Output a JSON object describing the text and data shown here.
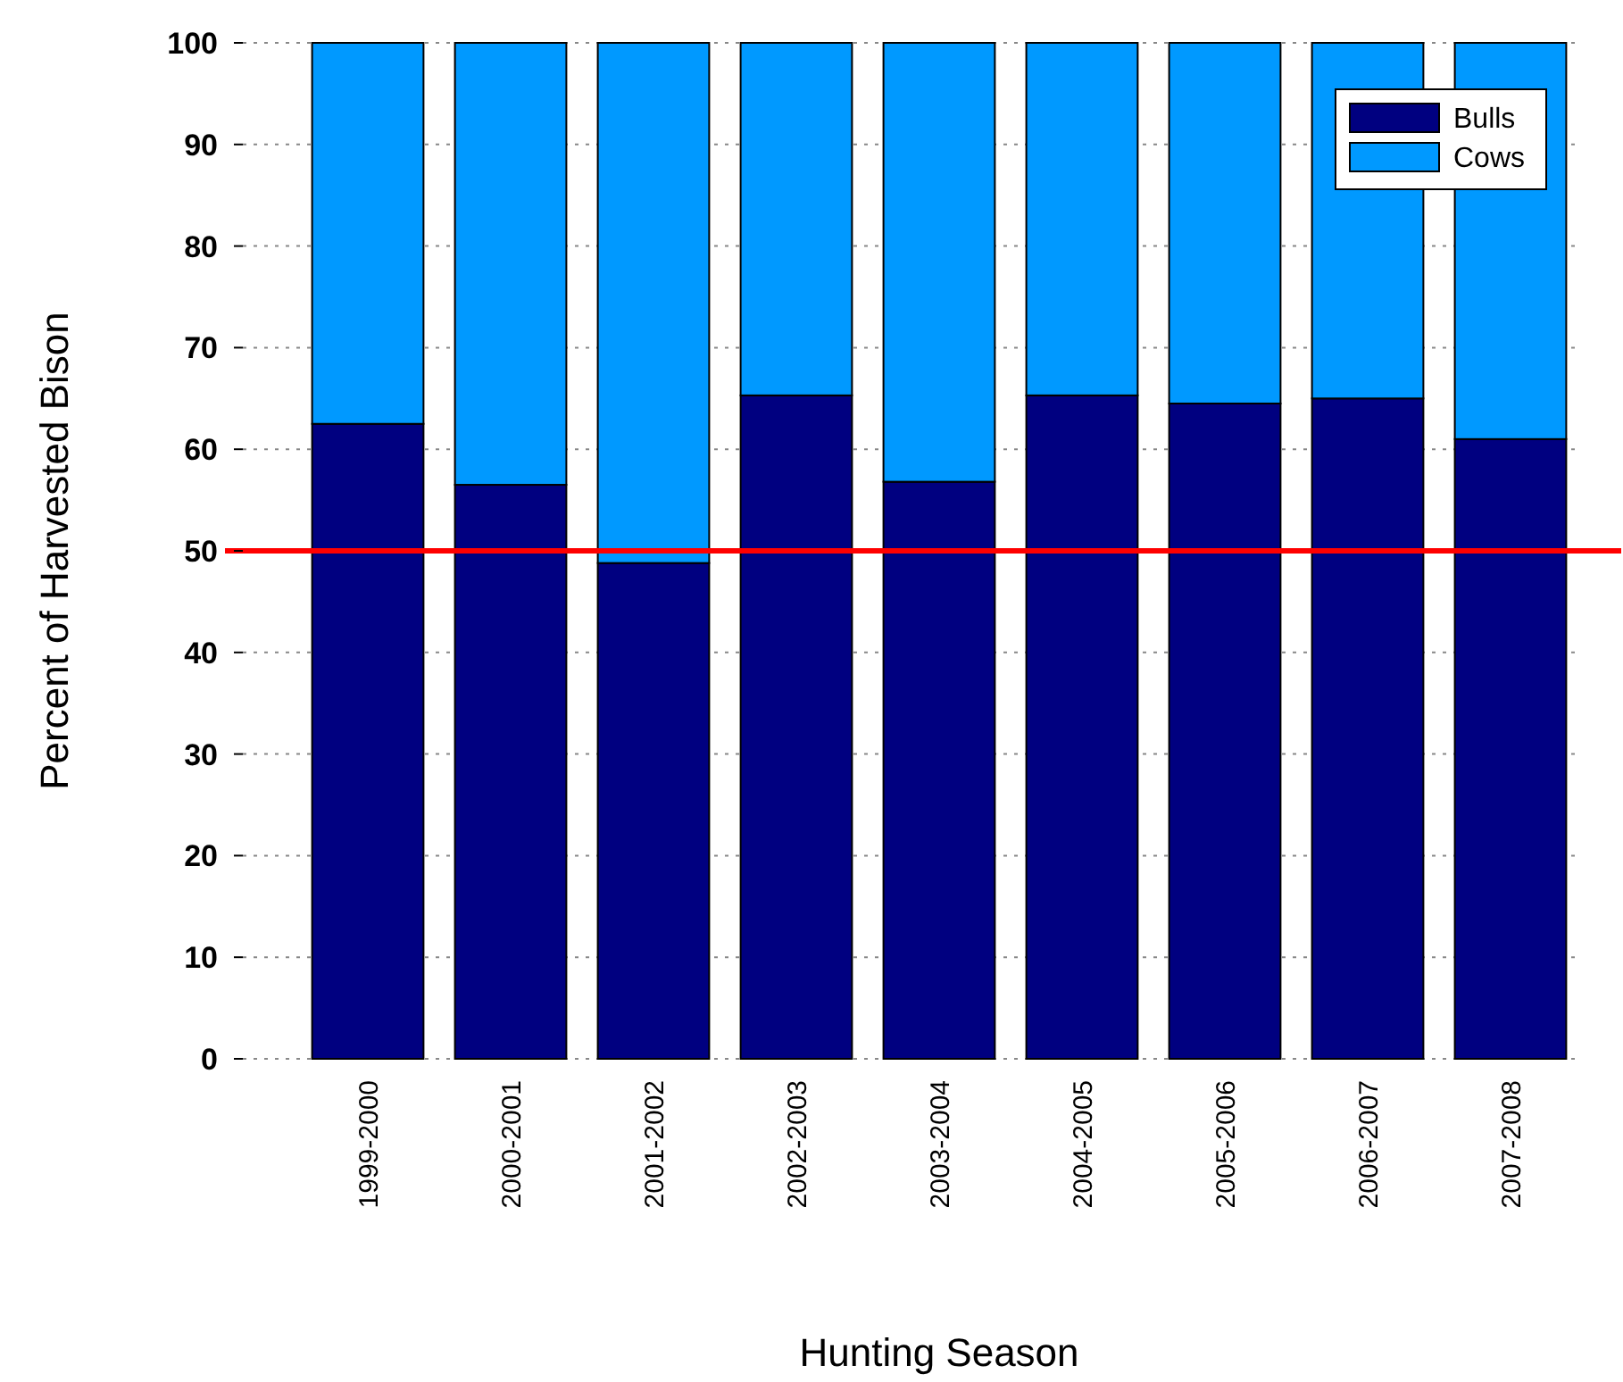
{
  "chart_data": {
    "type": "bar",
    "stacked": true,
    "xlabel": "Hunting Season",
    "ylabel": "Percent of Harvested Bison",
    "categories": [
      "1999-2000",
      "2000-2001",
      "2001-2002",
      "2002-2003",
      "2003-2004",
      "2004-2005",
      "2005-2006",
      "2006-2007",
      "2007-2008"
    ],
    "series": [
      {
        "name": "Bulls",
        "color": "#000080",
        "values": [
          62.5,
          56.5,
          48.8,
          65.3,
          56.8,
          65.3,
          64.5,
          65,
          61
        ]
      },
      {
        "name": "Cows",
        "color": "#0099ff",
        "values": [
          37.5,
          43.5,
          51.2,
          34.7,
          43.2,
          34.7,
          35.5,
          35,
          39
        ]
      }
    ],
    "ylim": [
      0,
      100
    ],
    "yticks": [
      0,
      10,
      20,
      30,
      40,
      50,
      60,
      70,
      80,
      90,
      100
    ],
    "grid": "y",
    "legend": "top right",
    "ref_lines": [
      {
        "axis": "y",
        "value": 50,
        "color": "#ff0000"
      }
    ]
  }
}
